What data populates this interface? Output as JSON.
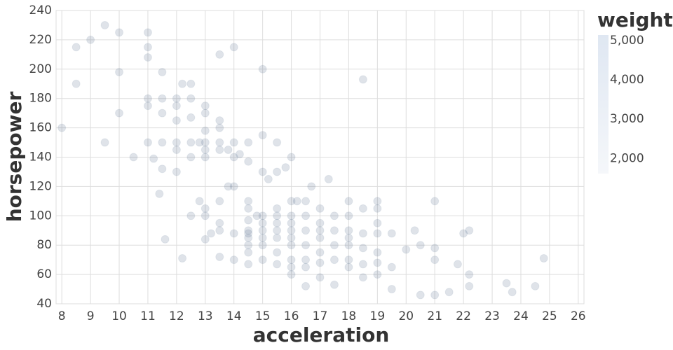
{
  "chart_data": {
    "type": "scatter",
    "x_label": "acceleration",
    "y_label": "horsepower",
    "xlim": [
      7.8,
      26.2
    ],
    "xticks": [
      8,
      9,
      10,
      11,
      12,
      13,
      14,
      15,
      16,
      17,
      18,
      19,
      20,
      21,
      22,
      23,
      24,
      25,
      26
    ],
    "ylim": [
      40,
      240
    ],
    "yticks": [
      40,
      60,
      80,
      100,
      120,
      140,
      160,
      180,
      200,
      220,
      240
    ],
    "grid": true,
    "color": "#5d7590",
    "x": [
      8,
      8.5,
      8.5,
      9,
      9.5,
      9.5,
      10,
      10,
      10,
      10.5,
      11,
      11,
      11,
      11,
      11,
      11,
      11.2,
      11.4,
      11.5,
      11.5,
      11.5,
      11.5,
      11.5,
      11.6,
      12,
      12,
      12,
      12,
      12,
      12,
      12.2,
      12.2,
      12.5,
      12.5,
      12.5,
      12.5,
      12.5,
      12.5,
      12.8,
      12.8,
      13,
      13,
      13,
      13,
      13,
      13,
      13,
      13,
      13,
      13.2,
      13.5,
      13.5,
      13.5,
      13.5,
      13.5,
      13.5,
      13.5,
      13.5,
      13.5,
      13.8,
      13.8,
      14,
      14,
      14,
      14,
      14,
      14,
      14.2,
      14.5,
      14.5,
      14.5,
      14.5,
      14.5,
      14.5,
      14.5,
      14.5,
      14.5,
      14.5,
      14.5,
      14.8,
      15,
      15,
      15,
      15,
      15,
      15,
      15,
      15,
      15,
      15.2,
      15.5,
      15.5,
      15.5,
      15.5,
      15.5,
      15.5,
      15.5,
      15.5,
      15.5,
      15.8,
      16,
      16,
      16,
      16,
      16,
      16,
      16,
      16,
      16,
      16,
      16.2,
      16.5,
      16.5,
      16.5,
      16.5,
      16.5,
      16.5,
      16.5,
      16.7,
      17,
      17,
      17,
      17,
      17,
      17,
      17,
      17.3,
      17.5,
      17.5,
      17.5,
      17.5,
      17.5,
      18,
      18,
      18,
      18,
      18,
      18,
      18,
      18.5,
      18.5,
      18.5,
      18.5,
      18.5,
      18.5,
      19,
      19,
      19,
      19,
      19,
      19,
      19,
      19.5,
      19.5,
      19.5,
      20,
      20.3,
      20.5,
      20.5,
      21,
      21,
      21,
      21,
      21.5,
      21.8,
      22,
      22.2,
      22.2,
      22.2,
      23.5,
      23.7,
      24.5,
      24.8
    ],
    "values": [
      160,
      215,
      190,
      220,
      230,
      150,
      225,
      198,
      170,
      140,
      225,
      215,
      208,
      180,
      175,
      150,
      139,
      115,
      198,
      180,
      170,
      150,
      132,
      84,
      180,
      175,
      165,
      150,
      145,
      130,
      190,
      71,
      190,
      180,
      167,
      150,
      140,
      100,
      110,
      150,
      175,
      170,
      158,
      150,
      145,
      140,
      105,
      100,
      84,
      88,
      210,
      165,
      160,
      150,
      145,
      110,
      95,
      90,
      72,
      145,
      120,
      215,
      150,
      140,
      120,
      88,
      70,
      142,
      150,
      137,
      110,
      105,
      97,
      90,
      88,
      85,
      80,
      75,
      67,
      100,
      200,
      155,
      130,
      100,
      95,
      90,
      85,
      80,
      70,
      125,
      150,
      130,
      105,
      100,
      95,
      90,
      85,
      75,
      67,
      133,
      140,
      110,
      100,
      95,
      90,
      85,
      80,
      70,
      65,
      60,
      110,
      110,
      100,
      90,
      80,
      70,
      65,
      52,
      120,
      105,
      95,
      90,
      85,
      75,
      68,
      58,
      125,
      100,
      90,
      80,
      70,
      53,
      110,
      100,
      90,
      85,
      80,
      70,
      65,
      193,
      105,
      88,
      78,
      67,
      58,
      110,
      105,
      95,
      88,
      75,
      68,
      60,
      88,
      65,
      50,
      77,
      90,
      80,
      46,
      110,
      78,
      70,
      46,
      48,
      67,
      88,
      90,
      60,
      52,
      54,
      48,
      52,
      71
    ],
    "legend": {
      "title": "weight",
      "range": [
        1613,
        5140
      ],
      "colors": [
        "#f5f7fa",
        "#dfe7f2"
      ],
      "ticks": [
        {
          "value": 5000,
          "label": "5,000"
        },
        {
          "value": 4000,
          "label": "4,000"
        },
        {
          "value": 3000,
          "label": "3,000"
        },
        {
          "value": 2000,
          "label": "2,000"
        }
      ]
    }
  }
}
